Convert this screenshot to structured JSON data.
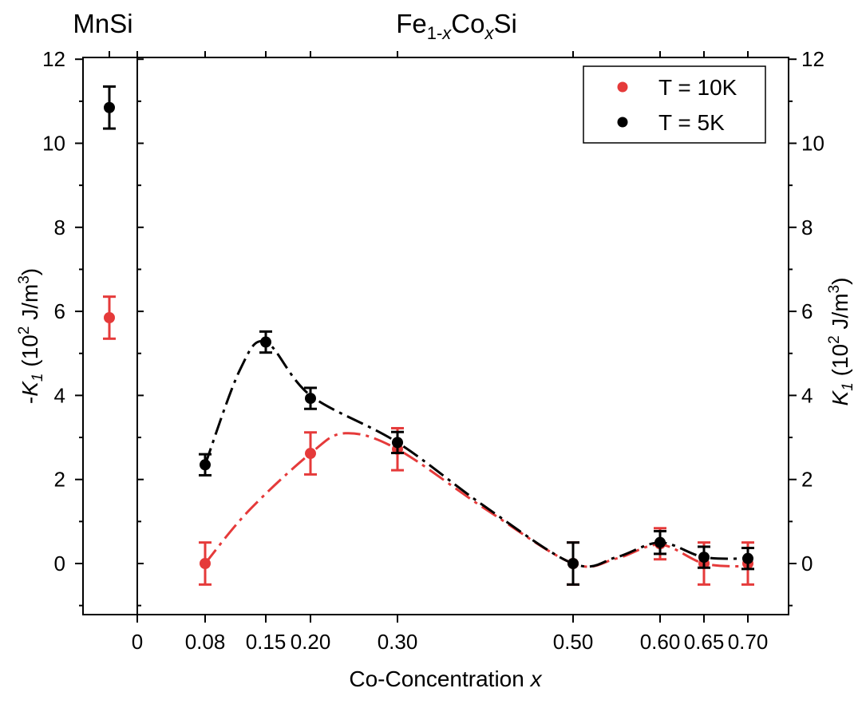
{
  "chart_data": {
    "type": "scatter",
    "title_left": "MnSi",
    "title_main": {
      "base1": "Fe",
      "sub1": "1-",
      "subx1": "x",
      "base2": "Co",
      "subx2": "x",
      "base3": "Si"
    },
    "xlabel": {
      "text": "Co-Concentration ",
      "var": "x"
    },
    "ylabel_left": {
      "prefix": "-",
      "var": "K",
      "sub": "1",
      "rest": " (10",
      "sup1": "2",
      "unit": " J/m",
      "sup2": "3",
      "close": ")"
    },
    "ylabel_right": {
      "var": "K",
      "sub": "1",
      "rest": " (10",
      "sup1": "2",
      "unit": " J/m",
      "sup2": "3",
      "close": ")"
    },
    "x_ticks": [
      "0",
      "0.08",
      "0.15",
      "0.20",
      "0.30",
      "0.50",
      "0.60",
      "0.65",
      "0.70"
    ],
    "x_tick_values": [
      0,
      0.08,
      0.15,
      0.2,
      0.3,
      0.5,
      0.6,
      0.65,
      0.7
    ],
    "ylim": [
      -1.2,
      12.5
    ],
    "y_ticks": [
      "0",
      "2",
      "4",
      "6",
      "8",
      "10",
      "12"
    ],
    "y_tick_values": [
      0,
      2,
      4,
      6,
      8,
      10,
      12
    ],
    "legend_position": "top-right",
    "colors": {
      "red": "#e53a3a",
      "black": "#000000"
    },
    "series": [
      {
        "name": "T = 10K",
        "color": "#e53a3a",
        "mnsi": {
          "y": 5.85,
          "err": 0.5
        },
        "x": [
          0.08,
          0.2,
          0.3,
          0.5,
          0.6,
          0.65,
          0.7
        ],
        "y": [
          0.0,
          2.62,
          2.72,
          0.0,
          0.47,
          0.0,
          0.0
        ],
        "err": [
          0.5,
          0.5,
          0.5,
          0.5,
          0.37,
          0.5,
          0.5
        ],
        "fit_x": [
          0.08,
          0.13,
          0.2,
          0.24,
          0.3,
          0.4,
          0.5,
          0.55,
          0.6,
          0.65,
          0.7
        ],
        "fit_y": [
          0.0,
          1.25,
          2.62,
          3.1,
          2.72,
          1.3,
          0.0,
          0.12,
          0.45,
          0.0,
          -0.07
        ]
      },
      {
        "name": "T = 5K",
        "color": "#000000",
        "mnsi": {
          "y": 10.85,
          "err": 0.5
        },
        "x": [
          0.08,
          0.15,
          0.2,
          0.3,
          0.5,
          0.6,
          0.65,
          0.7
        ],
        "y": [
          2.35,
          5.27,
          3.93,
          2.88,
          0.0,
          0.5,
          0.15,
          0.12
        ],
        "err": [
          0.25,
          0.25,
          0.25,
          0.25,
          0.5,
          0.27,
          0.25,
          0.25
        ],
        "fit_x": [
          0.08,
          0.12,
          0.15,
          0.2,
          0.3,
          0.4,
          0.5,
          0.55,
          0.6,
          0.65,
          0.7
        ],
        "fit_y": [
          2.35,
          4.6,
          5.27,
          4.0,
          2.88,
          1.35,
          0.0,
          0.15,
          0.5,
          0.15,
          0.12
        ]
      }
    ]
  }
}
